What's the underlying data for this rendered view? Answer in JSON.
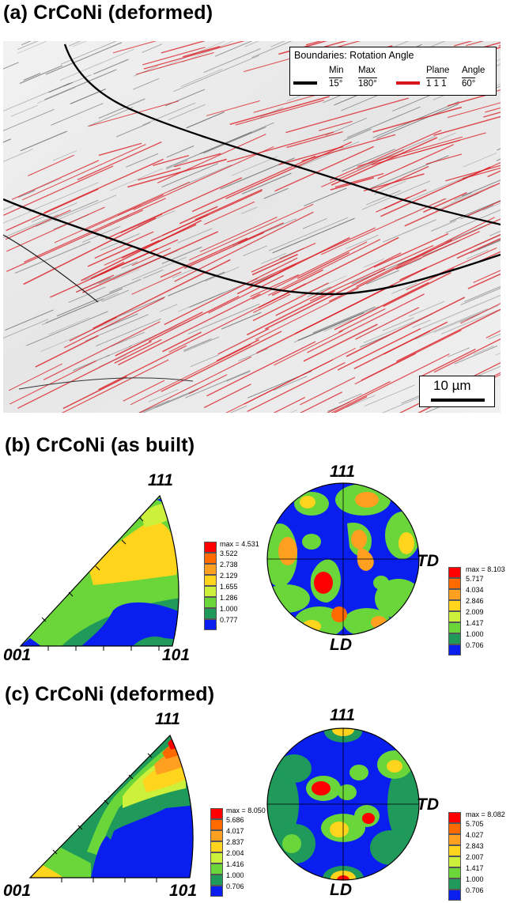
{
  "panel_a": {
    "title": "(a) CrCoNi (deformed)",
    "legend": {
      "title": "Boundaries: Rotation Angle",
      "min_label": "Min",
      "max_label": "Max",
      "plane_label": "Plane",
      "angle_label": "Angle",
      "min_value": "15°",
      "max_value": "180°",
      "plane_value": "1 1 1",
      "angle_value": "60°",
      "hagb_color": "#000000",
      "twin_color": "#d9141b"
    },
    "scale_bar": "10 µm"
  },
  "panel_b": {
    "title": "(b) CrCoNi (as built)",
    "ipf": {
      "corner_001": "001",
      "corner_101": "101",
      "corner_111": "111"
    },
    "ipf_scale": {
      "max": "max = 4.531",
      "values": [
        "3.522",
        "2.738",
        "2.129",
        "1.655",
        "1.286",
        "1.000",
        "0.777"
      ]
    },
    "pole_figure": {
      "top": "111",
      "right": "TD",
      "bottom": "LD"
    },
    "pf_scale": {
      "max": "max = 8.103",
      "values": [
        "5.717",
        "4.034",
        "2.846",
        "2.009",
        "1.417",
        "1.000",
        "0.706"
      ]
    }
  },
  "panel_c": {
    "title": "(c) CrCoNi (deformed)",
    "ipf": {
      "corner_001": "001",
      "corner_101": "101",
      "corner_111": "111"
    },
    "ipf_scale": {
      "max": "max = 8.050",
      "values": [
        "5.686",
        "4.017",
        "2.837",
        "2.004",
        "1.416",
        "1.000",
        "0.706"
      ]
    },
    "pole_figure": {
      "top": "111",
      "right": "TD",
      "bottom": "LD"
    },
    "pf_scale": {
      "max": "max = 8.082",
      "values": [
        "5.705",
        "4.027",
        "2.843",
        "2.007",
        "1.417",
        "1.000",
        "0.706"
      ]
    }
  },
  "contour_colors": [
    "#ff0000",
    "#ff6a00",
    "#ffa020",
    "#ffd41c",
    "#cdf03a",
    "#6ad63a",
    "#1f9a5a",
    "#0a1ef0"
  ]
}
